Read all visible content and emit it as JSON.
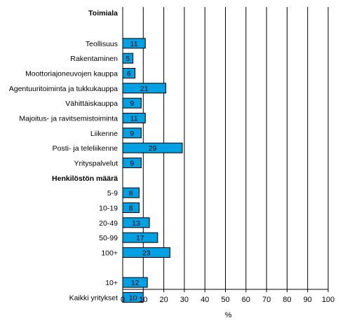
{
  "colors": {
    "bar": "#00A0E3",
    "bar_stroke": "#000000",
    "grid": "#000000"
  },
  "chart_data": {
    "type": "bar",
    "orientation": "horizontal",
    "xlabel": "%",
    "xlim": [
      0,
      100
    ],
    "x_ticks": [
      0,
      10,
      20,
      30,
      40,
      50,
      60,
      70,
      80,
      90,
      100
    ],
    "grid": "vertical",
    "group_headers": [
      "Toimiala",
      "Henkilöstön määrä"
    ],
    "rows": [
      {
        "kind": "header",
        "label": "Toimiala"
      },
      {
        "kind": "bar",
        "label": "Teollisuus",
        "value": 11
      },
      {
        "kind": "bar",
        "label": "Rakentaminen",
        "value": 5
      },
      {
        "kind": "bar",
        "label": "Moottoriajoneuvojen kauppa",
        "value": 6
      },
      {
        "kind": "bar",
        "label": "Agentuuritoiminta ja tukkukauppa",
        "value": 21
      },
      {
        "kind": "bar",
        "label": "Vähittäiskauppa",
        "value": 9
      },
      {
        "kind": "bar",
        "label": "Majoitus- ja ravitsemistoiminta",
        "value": 11
      },
      {
        "kind": "bar",
        "label": "Liikenne",
        "value": 9
      },
      {
        "kind": "bar",
        "label": "Posti- ja teleliikenne",
        "value": 29
      },
      {
        "kind": "bar",
        "label": "Yrityspalvelut",
        "value": 9
      },
      {
        "kind": "header",
        "label": "Henkilöstön määrä"
      },
      {
        "kind": "bar",
        "label": "5-9",
        "value": 8
      },
      {
        "kind": "bar",
        "label": "10-19",
        "value": 8
      },
      {
        "kind": "bar",
        "label": "20-49",
        "value": 13
      },
      {
        "kind": "bar",
        "label": "50-99",
        "value": 17
      },
      {
        "kind": "bar",
        "label": "100+",
        "value": 23
      },
      {
        "kind": "spacer"
      },
      {
        "kind": "bar",
        "label": "10+",
        "value": 12
      },
      {
        "kind": "bar",
        "label": "Kaikki yritykset",
        "value": 10
      }
    ]
  }
}
